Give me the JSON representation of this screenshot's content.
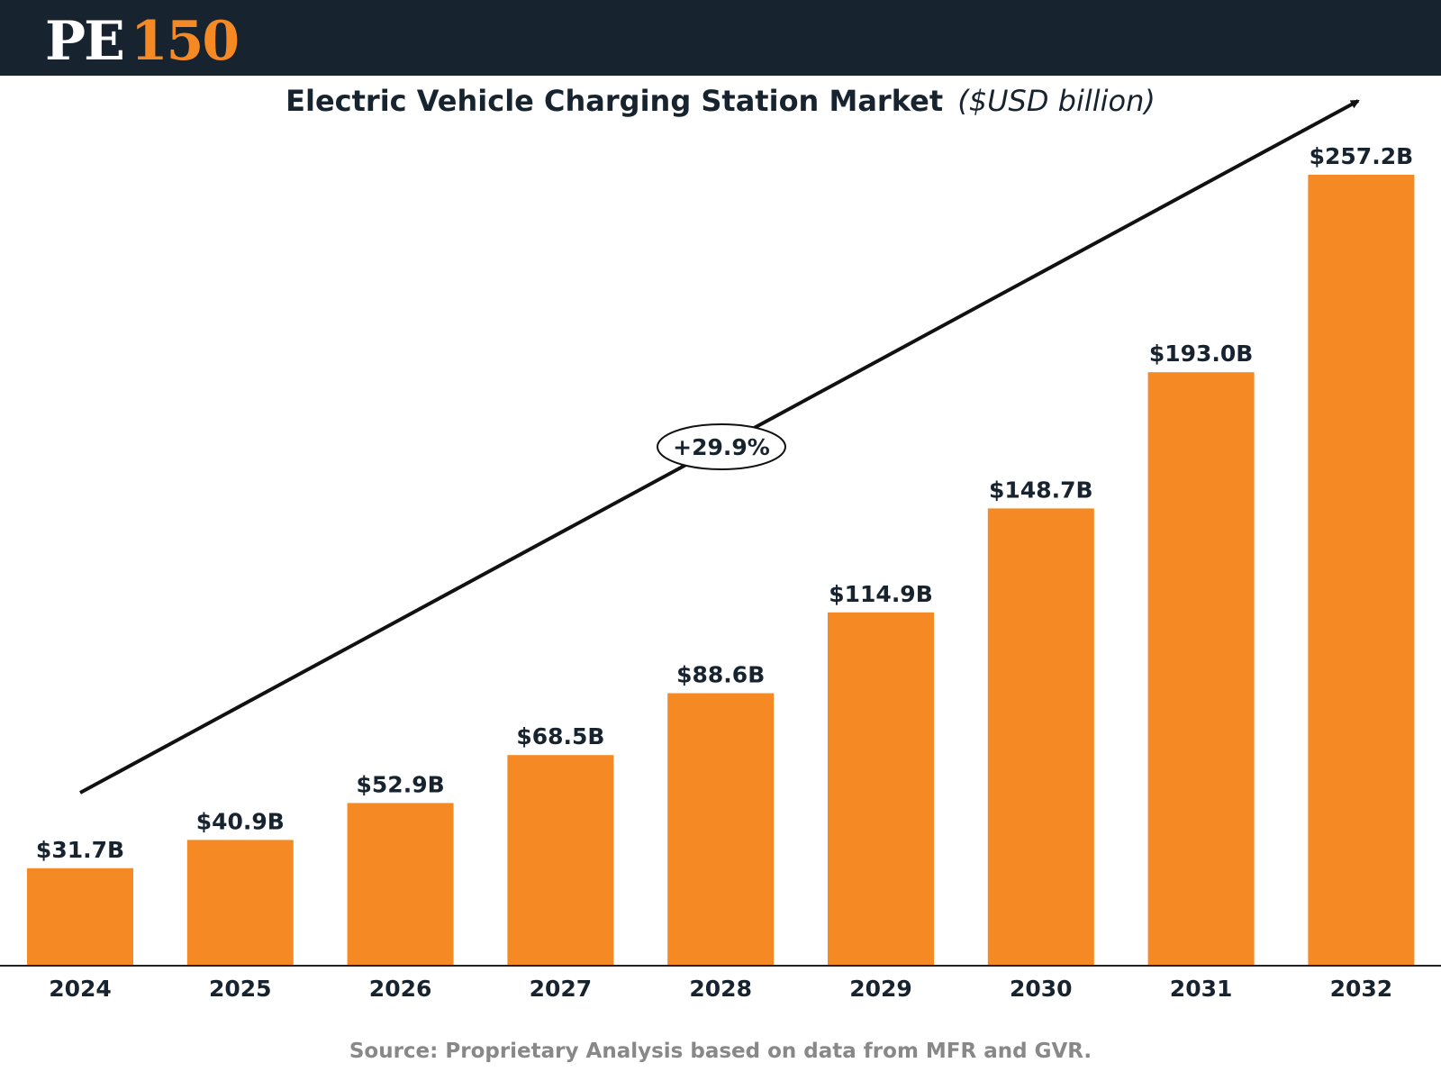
{
  "header": {
    "logo_pe": "PE",
    "logo_number": "150"
  },
  "colors": {
    "header_bg": "#17242f",
    "bar": "#f58a25",
    "text": "#17242f",
    "source": "#888888"
  },
  "chart_data": {
    "type": "bar",
    "title": "Electric Vehicle Charging Station Market",
    "title_unit": "($USD billion)",
    "xlabel": "",
    "ylabel": "",
    "ylim": [
      0,
      257.2
    ],
    "categories": [
      "2024",
      "2025",
      "2026",
      "2027",
      "2028",
      "2029",
      "2030",
      "2031",
      "2032"
    ],
    "values": [
      31.7,
      40.9,
      52.9,
      68.5,
      88.6,
      114.9,
      148.7,
      193.0,
      257.2
    ],
    "value_labels": [
      "$31.7B",
      "$40.9B",
      "$52.9B",
      "$68.5B",
      "$88.6B",
      "$114.9B",
      "$148.7B",
      "$193.0B",
      "$257.2B"
    ],
    "annotation": "+29.9%",
    "grid": false
  },
  "source": "Source: Proprietary Analysis based on data from MFR and GVR."
}
